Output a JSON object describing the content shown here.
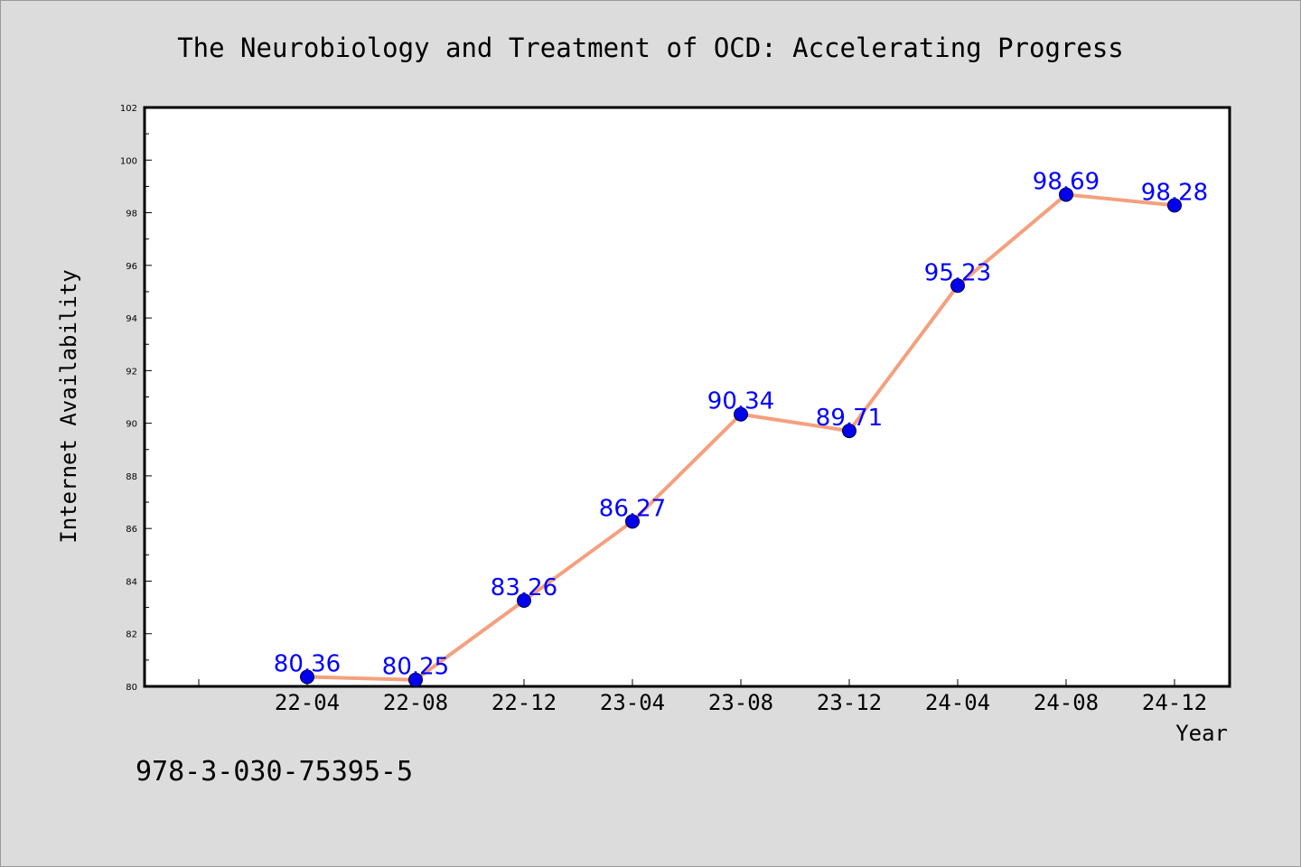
{
  "chart_data": {
    "type": "line",
    "title": "The Neurobiology and Treatment of OCD: Accelerating Progress",
    "xlabel": "Year",
    "ylabel": "Internet Availability",
    "categories": [
      "22-04",
      "22-08",
      "22-12",
      "23-04",
      "23-08",
      "23-12",
      "24-04",
      "24-08",
      "24-12"
    ],
    "series": [
      {
        "values": [
          80.36,
          80.25,
          83.26,
          86.27,
          90.34,
          89.71,
          95.23,
          98.69,
          98.28
        ],
        "labels": [
          "80.36",
          "80.25",
          "83.26",
          "86.27",
          "90.34",
          "89.71",
          "95.23",
          "98.69",
          "98.28"
        ],
        "line_color": "#f4a07e",
        "marker_color": "#0000ee"
      }
    ],
    "ylim": [
      80,
      102
    ],
    "yticks": [
      80,
      82,
      84,
      86,
      88,
      90,
      92,
      94,
      96,
      98,
      100,
      102
    ],
    "grid": false,
    "legend": "none"
  },
  "annotation": "978-3-030-75395-5"
}
